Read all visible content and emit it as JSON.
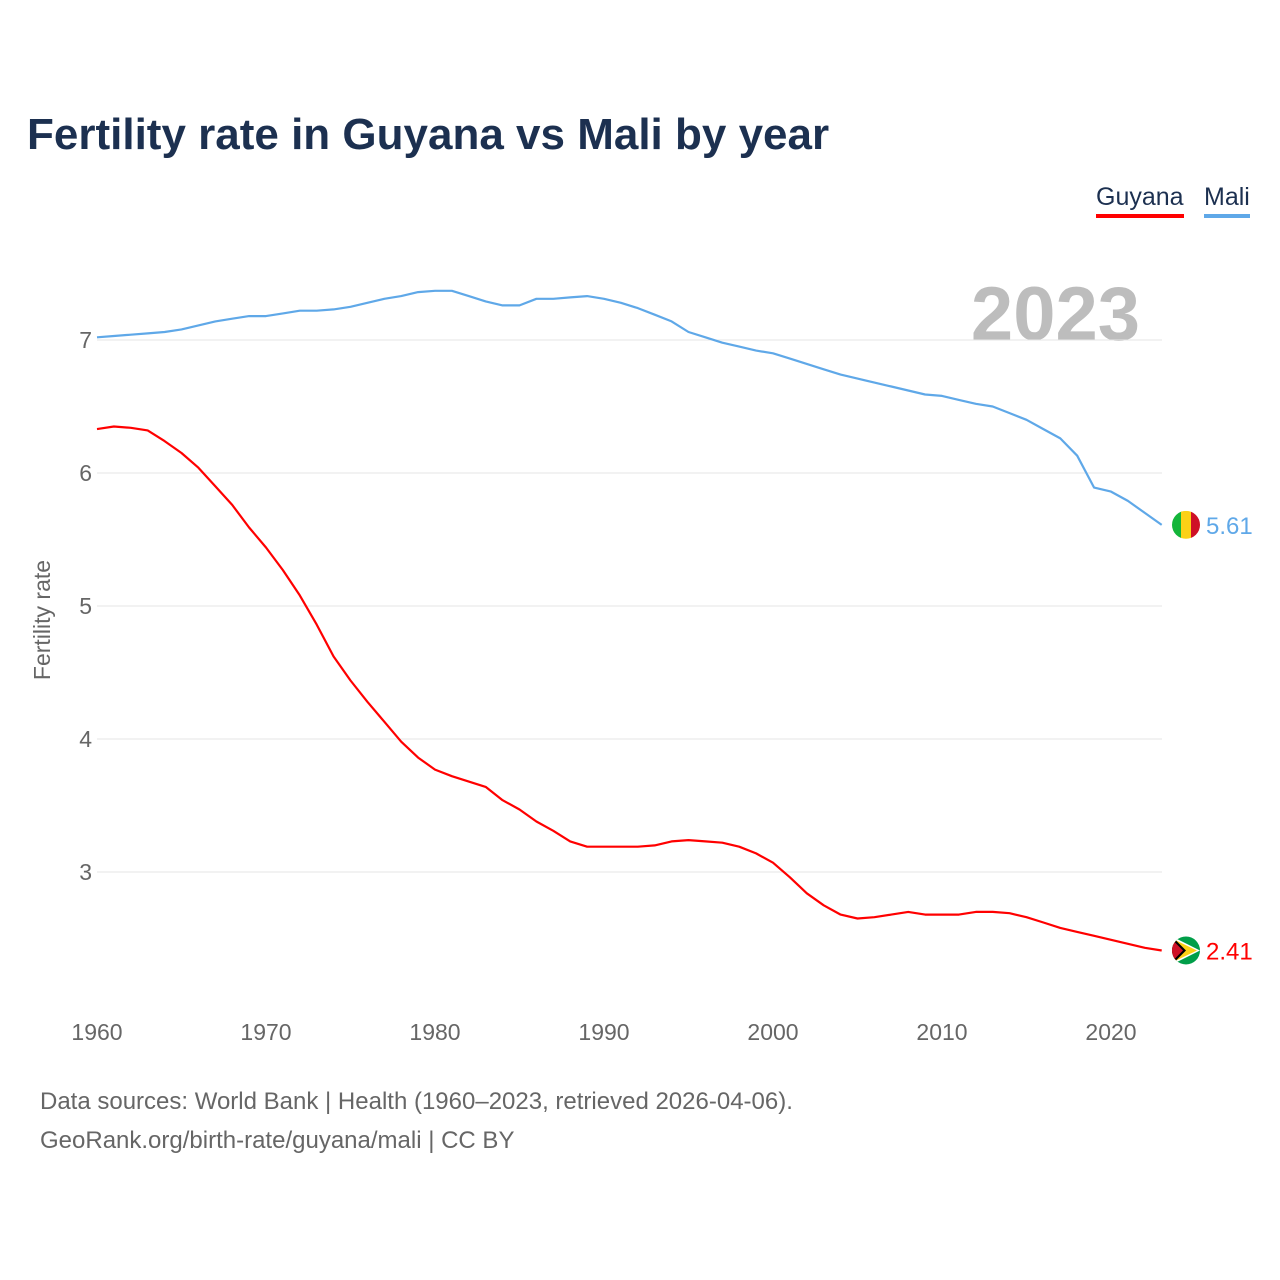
{
  "chart_data": {
    "type": "line",
    "title": "Fertility rate in Guyana vs Mali by year",
    "xlabel": "",
    "ylabel": "Fertility rate",
    "xlim": [
      1960,
      2023
    ],
    "ylim": [
      2.0,
      7.6
    ],
    "x_ticks": [
      "1960",
      "1970",
      "1980",
      "1990",
      "2000",
      "2010",
      "2020"
    ],
    "y_ticks": [
      "3",
      "4",
      "5",
      "6",
      "7"
    ],
    "grid": true,
    "legend_position": "top-right",
    "year_label": "2023",
    "x": [
      1960,
      1961,
      1962,
      1963,
      1964,
      1965,
      1966,
      1967,
      1968,
      1969,
      1970,
      1971,
      1972,
      1973,
      1974,
      1975,
      1976,
      1977,
      1978,
      1979,
      1980,
      1981,
      1982,
      1983,
      1984,
      1985,
      1986,
      1987,
      1988,
      1989,
      1990,
      1991,
      1992,
      1993,
      1994,
      1995,
      1996,
      1997,
      1998,
      1999,
      2000,
      2001,
      2002,
      2003,
      2004,
      2005,
      2006,
      2007,
      2008,
      2009,
      2010,
      2011,
      2012,
      2013,
      2014,
      2015,
      2016,
      2017,
      2018,
      2019,
      2020,
      2021,
      2022,
      2023
    ],
    "series": [
      {
        "name": "Guyana",
        "color": "#ff0000",
        "end_label": "2.41",
        "values": [
          6.33,
          6.35,
          6.34,
          6.32,
          6.24,
          6.15,
          6.04,
          5.9,
          5.76,
          5.59,
          5.44,
          5.27,
          5.08,
          4.86,
          4.62,
          4.44,
          4.28,
          4.13,
          3.98,
          3.86,
          3.77,
          3.72,
          3.68,
          3.64,
          3.54,
          3.47,
          3.38,
          3.31,
          3.23,
          3.19,
          3.19,
          3.19,
          3.19,
          3.2,
          3.23,
          3.24,
          3.23,
          3.22,
          3.19,
          3.14,
          3.07,
          2.96,
          2.84,
          2.75,
          2.68,
          2.65,
          2.66,
          2.68,
          2.7,
          2.68,
          2.68,
          2.68,
          2.7,
          2.7,
          2.69,
          2.66,
          2.62,
          2.58,
          2.55,
          2.52,
          2.49,
          2.46,
          2.43,
          2.41
        ]
      },
      {
        "name": "Mali",
        "color": "#5fa8e8",
        "end_label": "5.61",
        "values": [
          7.02,
          7.03,
          7.04,
          7.05,
          7.06,
          7.08,
          7.11,
          7.14,
          7.16,
          7.18,
          7.18,
          7.2,
          7.22,
          7.22,
          7.23,
          7.25,
          7.28,
          7.31,
          7.33,
          7.36,
          7.37,
          7.37,
          7.33,
          7.29,
          7.26,
          7.26,
          7.31,
          7.31,
          7.32,
          7.33,
          7.31,
          7.28,
          7.24,
          7.19,
          7.14,
          7.06,
          7.02,
          6.98,
          6.95,
          6.92,
          6.9,
          6.86,
          6.82,
          6.78,
          6.74,
          6.71,
          6.68,
          6.65,
          6.62,
          6.59,
          6.58,
          6.55,
          6.52,
          6.5,
          6.45,
          6.4,
          6.33,
          6.26,
          6.13,
          5.89,
          5.86,
          5.79,
          5.7,
          5.61
        ]
      }
    ]
  },
  "footer": {
    "line1": "Data sources: World Bank | Health (1960–2023, retrieved 2026-04-06).",
    "line2": "GeoRank.org/birth-rate/guyana/mali | CC BY"
  }
}
